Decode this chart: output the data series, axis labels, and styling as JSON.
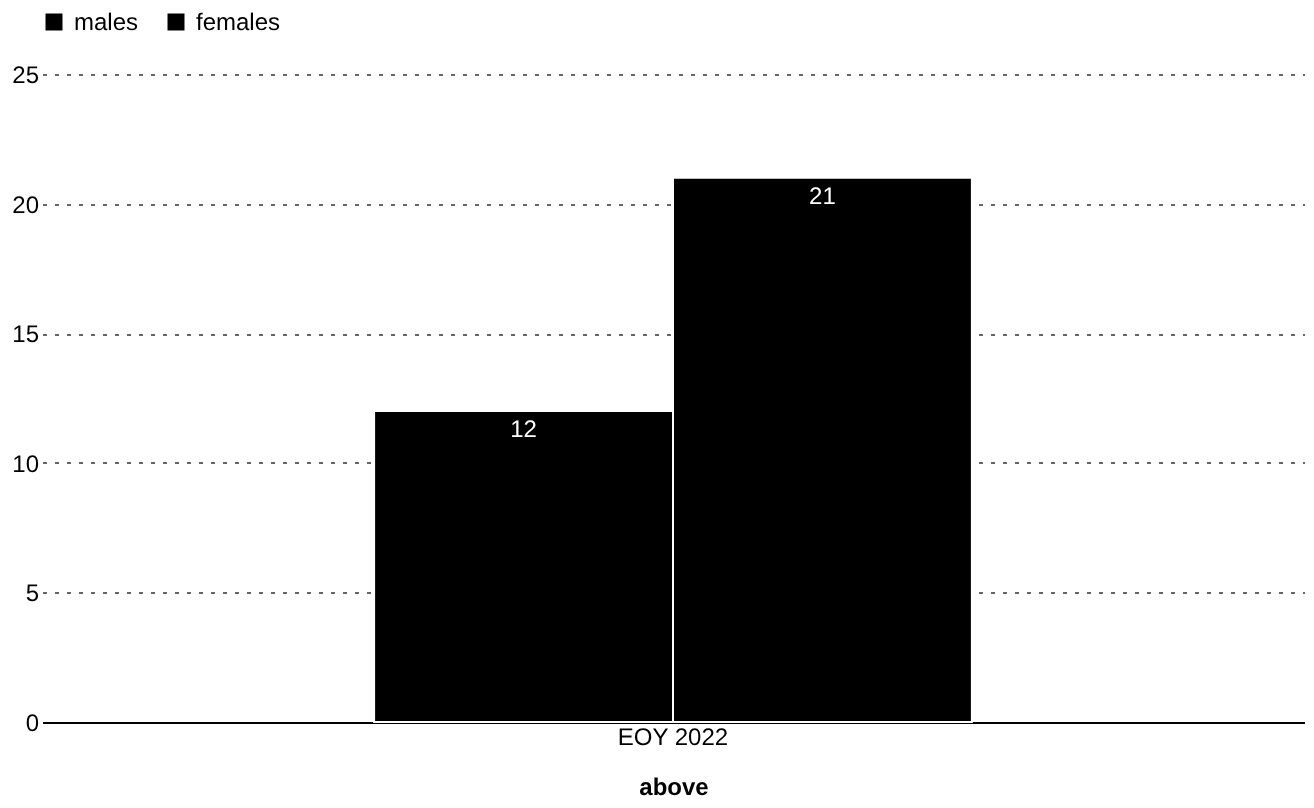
{
  "chart_data": {
    "type": "bar",
    "categories": [
      "EOY 2022"
    ],
    "xlabel": "above",
    "series": [
      {
        "name": "males",
        "color": "#000000",
        "values": [
          12
        ]
      },
      {
        "name": "females",
        "color": "#000000",
        "values": [
          21
        ]
      }
    ],
    "ylim": [
      0,
      25
    ],
    "yticks": [
      0,
      5,
      10,
      15,
      20,
      25
    ],
    "grid": "y",
    "legend": "top",
    "data_labels": true
  }
}
